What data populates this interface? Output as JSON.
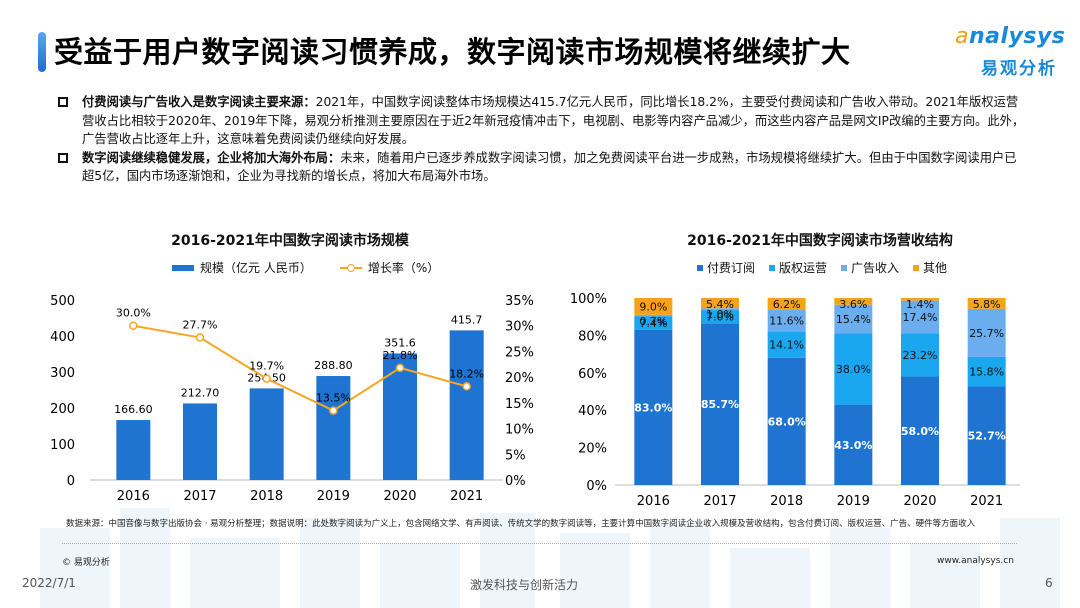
{
  "header": {
    "title": "受益于用户数字阅读习惯养成，数字阅读市场规模将继续扩大",
    "logo_en_prefix": "a",
    "logo_en": "nalysys",
    "logo_cn": "易观分析"
  },
  "bullets": [
    {
      "bold": "付费阅读与广告收入是数字阅读主要来源：",
      "text": "2021年，中国数字阅读整体市场规模达415.7亿元人民币，同比增长18.2%，主要受付费阅读和广告收入带动。2021年版权运营营收占比相较于2020年、2019年下降，易观分析推测主要原因在于近2年新冠疫情冲击下，电视剧、电影等内容产品减少，而这些内容产品是网文IP改编的主要方向。此外，广告营收占比逐年上升，这意味着免费阅读仍继续向好发展。"
    },
    {
      "bold": "数字阅读继续稳健发展，企业将加大海外布局：",
      "text": "未来，随着用户已逐步养成数字阅读习惯，加之免费阅读平台进一步成熟，市场规模将继续扩大。但由于中国数字阅读用户已超5亿，国内市场逐渐饱和，企业为寻找新的增长点，将加大布局海外市场。"
    }
  ],
  "chart_data": [
    {
      "type": "bar",
      "title": "2016-2021年中国数字阅读市场规模",
      "categories": [
        "2016",
        "2017",
        "2018",
        "2019",
        "2020",
        "2021"
      ],
      "series": [
        {
          "name": "规模（亿元 人民币）",
          "kind": "bar",
          "axis": "left",
          "color": "#1f74d2",
          "values": [
            166.6,
            212.7,
            254.5,
            288.8,
            351.6,
            415.7
          ],
          "labels": [
            "166.60",
            "212.70",
            "254.50",
            "288.80",
            "351.6",
            "415.7"
          ]
        },
        {
          "name": "增长率（%）",
          "kind": "line",
          "axis": "right",
          "color": "#f5a623",
          "values": [
            30.0,
            27.7,
            19.7,
            13.5,
            21.8,
            18.2
          ],
          "labels": [
            "30.0%",
            "27.7%",
            "19.7%",
            "13.5%",
            "21.8%",
            "18.2%"
          ]
        }
      ],
      "y_left": {
        "range": [
          0,
          500
        ],
        "ticks": [
          "0",
          "100",
          "200",
          "300",
          "400",
          "500"
        ]
      },
      "y_right": {
        "range": [
          0,
          35
        ],
        "ticks": [
          "0%",
          "5%",
          "10%",
          "15%",
          "20%",
          "25%",
          "30%",
          "35%"
        ]
      },
      "legend": "top",
      "grid": false
    },
    {
      "type": "bar",
      "stacked": true,
      "title": "2016-2021年中国数字阅读市场营收结构",
      "categories": [
        "2016",
        "2017",
        "2018",
        "2019",
        "2020",
        "2021"
      ],
      "series": [
        {
          "name": "付费订阅",
          "color": "#1f74d2",
          "label_color": "#ffffff",
          "values": [
            83.0,
            85.7,
            68.0,
            43.0,
            58.0,
            52.7
          ]
        },
        {
          "name": "版权运营",
          "color": "#1aa7f0",
          "label_color": "#111111",
          "values": [
            7.4,
            7.0,
            14.1,
            38.0,
            23.2,
            15.8
          ]
        },
        {
          "name": "广告收入",
          "color": "#6aaef0",
          "label_color": "#111111",
          "values": [
            0.7,
            1.0,
            11.6,
            15.4,
            17.4,
            25.7
          ]
        },
        {
          "name": "其他",
          "color": "#f7a21b",
          "label_color": "#111111",
          "values": [
            9.0,
            5.4,
            6.2,
            3.6,
            1.4,
            5.8
          ]
        }
      ],
      "y": {
        "range": [
          0,
          100
        ],
        "ticks": [
          "0%",
          "20%",
          "40%",
          "60%",
          "80%",
          "100%"
        ]
      },
      "legend": "top",
      "grid": false
    }
  ],
  "notes": {
    "source": "数据来源：中国音像与数字出版协会 · 易观分析整理；数据说明：此处数字阅读为广义上，包含网络文学、有声阅读、传统文学的数字阅读等，主要计算中国数字阅读企业收入规模及营收结构，包含付费订阅、版权运营、广告、硬件等方面收入",
    "copyright": "© 易观分析",
    "website": "www.analysys.cn"
  },
  "footer": {
    "date": "2022/7/1",
    "slogan": "激发科技与创新活力",
    "page": "6"
  }
}
